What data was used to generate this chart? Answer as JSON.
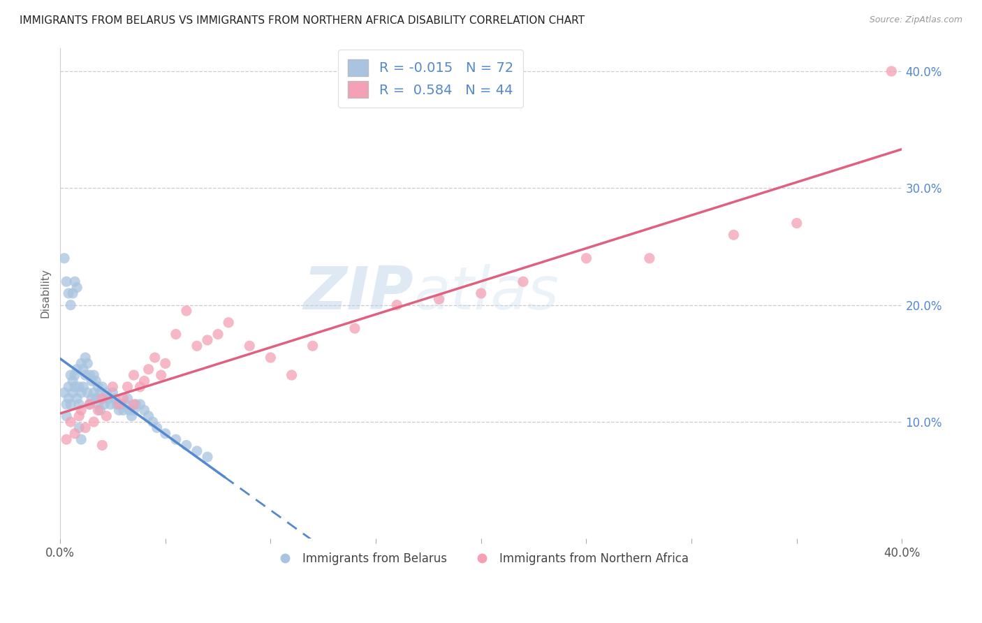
{
  "title": "IMMIGRANTS FROM BELARUS VS IMMIGRANTS FROM NORTHERN AFRICA DISABILITY CORRELATION CHART",
  "source": "Source: ZipAtlas.com",
  "ylabel": "Disability",
  "legend1_label": "Immigrants from Belarus",
  "legend2_label": "Immigrants from Northern Africa",
  "r_belarus": -0.015,
  "n_belarus": 72,
  "r_northafrica": 0.584,
  "n_northafrica": 44,
  "xlim": [
    0.0,
    0.4
  ],
  "ylim": [
    0.0,
    0.42
  ],
  "yticks": [
    0.1,
    0.2,
    0.3,
    0.4
  ],
  "ytick_labels": [
    "10.0%",
    "20.0%",
    "30.0%",
    "40.0%"
  ],
  "xticks": [
    0.0,
    0.05,
    0.1,
    0.15,
    0.2,
    0.25,
    0.3,
    0.35,
    0.4
  ],
  "color_belarus": "#a8c4e0",
  "color_northafrica": "#f4a0b5",
  "trendline_belarus_color": "#5588cc",
  "trendline_northafrica_color": "#e06080",
  "background_color": "#ffffff",
  "watermark_zip": "ZIP",
  "watermark_atlas": "atlas",
  "belarus_x": [
    0.002,
    0.003,
    0.003,
    0.004,
    0.004,
    0.005,
    0.005,
    0.006,
    0.006,
    0.007,
    0.007,
    0.008,
    0.008,
    0.009,
    0.009,
    0.01,
    0.01,
    0.011,
    0.011,
    0.012,
    0.012,
    0.013,
    0.013,
    0.014,
    0.014,
    0.015,
    0.015,
    0.016,
    0.016,
    0.017,
    0.017,
    0.018,
    0.018,
    0.019,
    0.019,
    0.02,
    0.02,
    0.021,
    0.022,
    0.023,
    0.024,
    0.025,
    0.026,
    0.027,
    0.028,
    0.029,
    0.03,
    0.031,
    0.032,
    0.033,
    0.034,
    0.035,
    0.036,
    0.038,
    0.04,
    0.042,
    0.044,
    0.046,
    0.05,
    0.055,
    0.06,
    0.065,
    0.07,
    0.002,
    0.003,
    0.004,
    0.005,
    0.006,
    0.007,
    0.008,
    0.009,
    0.01
  ],
  "belarus_y": [
    0.125,
    0.115,
    0.105,
    0.13,
    0.12,
    0.14,
    0.115,
    0.135,
    0.125,
    0.14,
    0.13,
    0.145,
    0.12,
    0.13,
    0.115,
    0.15,
    0.125,
    0.145,
    0.13,
    0.155,
    0.14,
    0.15,
    0.125,
    0.14,
    0.115,
    0.135,
    0.12,
    0.14,
    0.125,
    0.135,
    0.12,
    0.13,
    0.115,
    0.125,
    0.11,
    0.13,
    0.12,
    0.115,
    0.125,
    0.12,
    0.115,
    0.125,
    0.12,
    0.115,
    0.11,
    0.115,
    0.11,
    0.115,
    0.12,
    0.11,
    0.105,
    0.11,
    0.115,
    0.115,
    0.11,
    0.105,
    0.1,
    0.095,
    0.09,
    0.085,
    0.08,
    0.075,
    0.07,
    0.24,
    0.22,
    0.21,
    0.2,
    0.21,
    0.22,
    0.215,
    0.095,
    0.085
  ],
  "northafrica_x": [
    0.003,
    0.005,
    0.007,
    0.009,
    0.01,
    0.012,
    0.014,
    0.016,
    0.018,
    0.02,
    0.022,
    0.025,
    0.028,
    0.03,
    0.032,
    0.035,
    0.038,
    0.04,
    0.042,
    0.045,
    0.048,
    0.05,
    0.055,
    0.06,
    0.065,
    0.07,
    0.075,
    0.08,
    0.09,
    0.1,
    0.11,
    0.12,
    0.14,
    0.16,
    0.18,
    0.2,
    0.22,
    0.25,
    0.28,
    0.32,
    0.35,
    0.02,
    0.035,
    0.395
  ],
  "northafrica_y": [
    0.085,
    0.1,
    0.09,
    0.105,
    0.11,
    0.095,
    0.115,
    0.1,
    0.11,
    0.12,
    0.105,
    0.13,
    0.115,
    0.12,
    0.13,
    0.14,
    0.13,
    0.135,
    0.145,
    0.155,
    0.14,
    0.15,
    0.175,
    0.195,
    0.165,
    0.17,
    0.175,
    0.185,
    0.165,
    0.155,
    0.14,
    0.165,
    0.18,
    0.2,
    0.205,
    0.21,
    0.22,
    0.24,
    0.24,
    0.26,
    0.27,
    0.08,
    0.115,
    0.4
  ]
}
